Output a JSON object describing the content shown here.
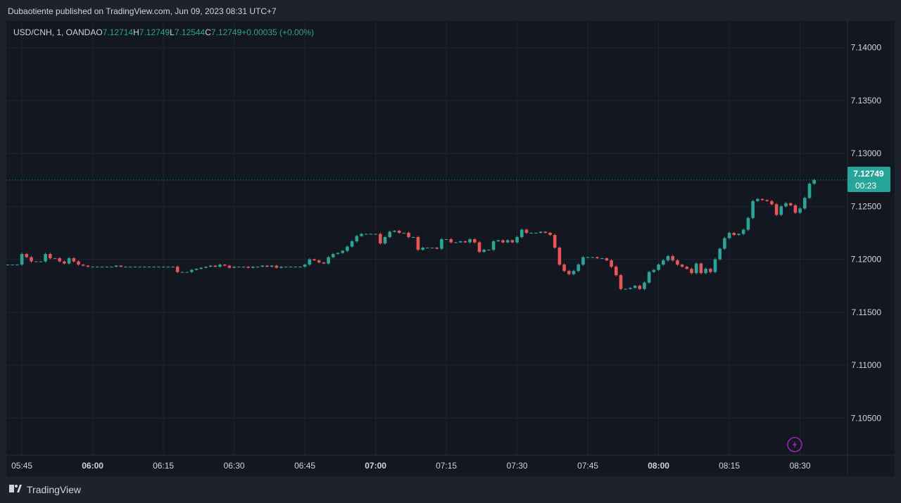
{
  "header": {
    "published": "Dubaotiente published on TradingView.com, Jun 09, 2023 08:31 UTC+7"
  },
  "legend": {
    "symbol": "USD/CNH, 1, OANDA",
    "o_label": "O",
    "o": "7.12714",
    "h_label": "H",
    "h": "7.12749",
    "l_label": "L",
    "l": "7.12544",
    "c_label": "C",
    "c": "7.12749",
    "change": "+0.00035 (+0.00%)"
  },
  "footer": {
    "brand": "TradingView"
  },
  "price_tag": {
    "price": "7.12749",
    "countdown": "00:23",
    "color": "#26a69a"
  },
  "colors": {
    "up": "#26a69a",
    "down": "#ef5350",
    "background": "#131722",
    "grid": "#1f2430",
    "text": "#d1d4dc",
    "flash_icon": "#9c27b0"
  },
  "chart_data": {
    "type": "candlestick",
    "symbol": "USD/CNH",
    "interval": "1",
    "ylim": [
      7.1015,
      7.1425
    ],
    "y_ticks": [
      "7.10500",
      "7.11000",
      "7.11500",
      "7.12000",
      "7.12500",
      "7.13000",
      "7.13500",
      "7.14000"
    ],
    "x_ticks": [
      {
        "label": "05:45",
        "bold": false,
        "i": 3
      },
      {
        "label": "06:00",
        "bold": true,
        "i": 18
      },
      {
        "label": "06:15",
        "bold": false,
        "i": 33
      },
      {
        "label": "06:30",
        "bold": false,
        "i": 48
      },
      {
        "label": "06:45",
        "bold": false,
        "i": 63
      },
      {
        "label": "07:00",
        "bold": true,
        "i": 78
      },
      {
        "label": "07:15",
        "bold": false,
        "i": 93
      },
      {
        "label": "07:30",
        "bold": false,
        "i": 108
      },
      {
        "label": "07:45",
        "bold": false,
        "i": 123
      },
      {
        "label": "08:00",
        "bold": true,
        "i": 138
      },
      {
        "label": "08:15",
        "bold": false,
        "i": 153
      },
      {
        "label": "08:30",
        "bold": false,
        "i": 168
      }
    ],
    "first_time": "05:42",
    "last_price": 7.12749,
    "closes": [
      7.1195,
      7.1195,
      7.1195,
      7.1205,
      7.1202,
      7.1198,
      7.1198,
      7.1198,
      7.1205,
      7.1201,
      7.1201,
      7.1198,
      7.1196,
      7.1201,
      7.1198,
      7.1195,
      7.1194,
      7.1193,
      7.1193,
      7.1193,
      7.1193,
      7.1193,
      7.1193,
      7.1194,
      7.1193,
      7.1193,
      7.1193,
      7.1193,
      7.1193,
      7.1193,
      7.1193,
      7.1193,
      7.1193,
      7.1193,
      7.1193,
      7.1193,
      7.1188,
      7.1188,
      7.1188,
      7.119,
      7.1191,
      7.1192,
      7.1193,
      7.1194,
      7.1193,
      7.1195,
      7.1194,
      7.1192,
      7.1193,
      7.1193,
      7.1193,
      7.1192,
      7.1193,
      7.1193,
      7.1194,
      7.1193,
      7.1194,
      7.1192,
      7.1193,
      7.1193,
      7.1193,
      7.1193,
      7.1193,
      7.1195,
      7.12,
      7.1199,
      7.1197,
      7.1196,
      7.1202,
      7.1205,
      7.1206,
      7.1208,
      7.1212,
      7.1217,
      7.1222,
      7.1224,
      7.1224,
      7.1224,
      7.1224,
      7.1215,
      7.1221,
      7.1226,
      7.1227,
      7.1225,
      7.1225,
      7.1221,
      7.1221,
      7.1209,
      7.1211,
      7.1211,
      7.1211,
      7.121,
      7.1219,
      7.1219,
      7.1216,
      7.1216,
      7.1217,
      7.1216,
      7.1219,
      7.1216,
      7.1207,
      7.1209,
      7.1209,
      7.1217,
      7.1218,
      7.1216,
      7.1218,
      7.1216,
      7.1221,
      7.1228,
      7.1225,
      7.1225,
      7.1225,
      7.1226,
      7.1225,
      7.1223,
      7.1211,
      7.1195,
      7.1189,
      7.1186,
      7.1189,
      7.1195,
      7.1202,
      7.1202,
      7.1202,
      7.1201,
      7.1201,
      7.1199,
      7.1193,
      7.1185,
      7.1172,
      7.1172,
      7.1173,
      7.1175,
      7.1172,
      7.1178,
      7.1188,
      7.119,
      7.1195,
      7.1199,
      7.1203,
      7.1199,
      7.1195,
      7.1193,
      7.1191,
      7.1187,
      7.1196,
      7.1187,
      7.1191,
      7.1188,
      7.12,
      7.121,
      7.122,
      7.1225,
      7.1223,
      7.1224,
      7.1228,
      7.1239,
      7.1255,
      7.1257,
      7.1256,
      7.1255,
      7.1252,
      7.1242,
      7.125,
      7.1253,
      7.1251,
      7.1244,
      7.1248,
      7.1258,
      7.12714,
      7.12749
    ]
  }
}
